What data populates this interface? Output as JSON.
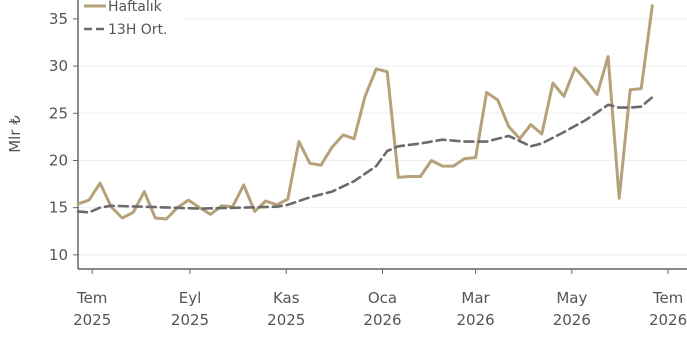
{
  "chart_data": {
    "type": "line",
    "ylabel": "Mlr ₺",
    "xlabel": "",
    "title": "",
    "ylim": [
      8.5,
      37
    ],
    "yticks": [
      10,
      15,
      20,
      25,
      30,
      35
    ],
    "grid": "horizontal",
    "legend_position": "top-left",
    "x_ticks": [
      {
        "date": "2025-07-01",
        "label_month": "Tem",
        "label_year": "2025"
      },
      {
        "date": "2025-09-01",
        "label_month": "Eyl",
        "label_year": "2025"
      },
      {
        "date": "2025-11-01",
        "label_month": "Kas",
        "label_year": "2025"
      },
      {
        "date": "2026-01-01",
        "label_month": "Oca",
        "label_year": "2026"
      },
      {
        "date": "2026-03-01",
        "label_month": "Mar",
        "label_year": "2026"
      },
      {
        "date": "2026-05-01",
        "label_month": "May",
        "label_year": "2026"
      },
      {
        "date": "2026-07-01",
        "label_month": "Tem",
        "label_year": "2026"
      }
    ],
    "xlim": [
      "2025-06-22",
      "2026-07-13"
    ],
    "series": [
      {
        "name": "Haftalık",
        "color": "#b5a27a",
        "dash": "solid",
        "points": [
          [
            "2025-06-22",
            15.4
          ],
          [
            "2025-06-29",
            15.8
          ],
          [
            "2025-07-06",
            17.6
          ],
          [
            "2025-07-13",
            15.1
          ],
          [
            "2025-07-20",
            13.9
          ],
          [
            "2025-07-27",
            14.5
          ],
          [
            "2025-08-03",
            16.7
          ],
          [
            "2025-08-10",
            13.9
          ],
          [
            "2025-08-17",
            13.8
          ],
          [
            "2025-08-24",
            15.0
          ],
          [
            "2025-08-31",
            15.8
          ],
          [
            "2025-09-07",
            15.0
          ],
          [
            "2025-09-14",
            14.3
          ],
          [
            "2025-09-21",
            15.2
          ],
          [
            "2025-09-28",
            15.1
          ],
          [
            "2025-10-05",
            17.4
          ],
          [
            "2025-10-12",
            14.6
          ],
          [
            "2025-10-19",
            15.7
          ],
          [
            "2025-10-26",
            15.3
          ],
          [
            "2025-11-02",
            15.9
          ],
          [
            "2025-11-09",
            22.0
          ],
          [
            "2025-11-16",
            19.7
          ],
          [
            "2025-11-23",
            19.5
          ],
          [
            "2025-11-30",
            21.4
          ],
          [
            "2025-12-07",
            22.7
          ],
          [
            "2025-12-14",
            22.3
          ],
          [
            "2025-12-21",
            26.8
          ],
          [
            "2025-12-28",
            29.7
          ],
          [
            "2026-01-04",
            29.4
          ],
          [
            "2026-01-11",
            18.2
          ],
          [
            "2026-01-18",
            18.3
          ],
          [
            "2026-01-25",
            18.3
          ],
          [
            "2026-02-01",
            20.0
          ],
          [
            "2026-02-08",
            19.4
          ],
          [
            "2026-02-15",
            19.4
          ],
          [
            "2026-02-22",
            20.2
          ],
          [
            "2026-03-01",
            20.3
          ],
          [
            "2026-03-08",
            27.2
          ],
          [
            "2026-03-15",
            26.4
          ],
          [
            "2026-03-22",
            23.6
          ],
          [
            "2026-03-29",
            22.3
          ],
          [
            "2026-04-05",
            23.8
          ],
          [
            "2026-04-12",
            22.8
          ],
          [
            "2026-04-19",
            28.2
          ],
          [
            "2026-04-26",
            26.8
          ],
          [
            "2026-05-03",
            29.8
          ],
          [
            "2026-05-10",
            28.5
          ],
          [
            "2026-05-17",
            27.0
          ],
          [
            "2026-05-24",
            31.0
          ],
          [
            "2026-05-31",
            16.0
          ],
          [
            "2026-06-07",
            27.5
          ],
          [
            "2026-06-14",
            27.6
          ],
          [
            "2026-06-21",
            36.4
          ]
        ]
      },
      {
        "name": "13H Ort.",
        "color": "#6b6b6b",
        "dash": "dashed",
        "points": [
          [
            "2025-06-22",
            14.6
          ],
          [
            "2025-06-29",
            14.5
          ],
          [
            "2025-07-06",
            15.0
          ],
          [
            "2025-07-13",
            15.2
          ],
          [
            "2025-08-03",
            15.1
          ],
          [
            "2025-09-07",
            14.9
          ],
          [
            "2025-10-05",
            15.0
          ],
          [
            "2025-10-26",
            15.1
          ],
          [
            "2025-11-02",
            15.3
          ],
          [
            "2025-11-16",
            16.1
          ],
          [
            "2025-11-30",
            16.7
          ],
          [
            "2025-12-14",
            17.8
          ],
          [
            "2025-12-28",
            19.4
          ],
          [
            "2026-01-04",
            21.0
          ],
          [
            "2026-01-11",
            21.5
          ],
          [
            "2026-01-25",
            21.8
          ],
          [
            "2026-02-08",
            22.2
          ],
          [
            "2026-02-22",
            22.0
          ],
          [
            "2026-03-08",
            22.0
          ],
          [
            "2026-03-22",
            22.6
          ],
          [
            "2026-04-05",
            21.5
          ],
          [
            "2026-04-12",
            21.8
          ],
          [
            "2026-04-26",
            23.0
          ],
          [
            "2026-05-10",
            24.3
          ],
          [
            "2026-05-24",
            25.9
          ],
          [
            "2026-05-31",
            25.6
          ],
          [
            "2026-06-07",
            25.6
          ],
          [
            "2026-06-14",
            25.7
          ],
          [
            "2026-06-21",
            26.7
          ]
        ]
      }
    ]
  }
}
